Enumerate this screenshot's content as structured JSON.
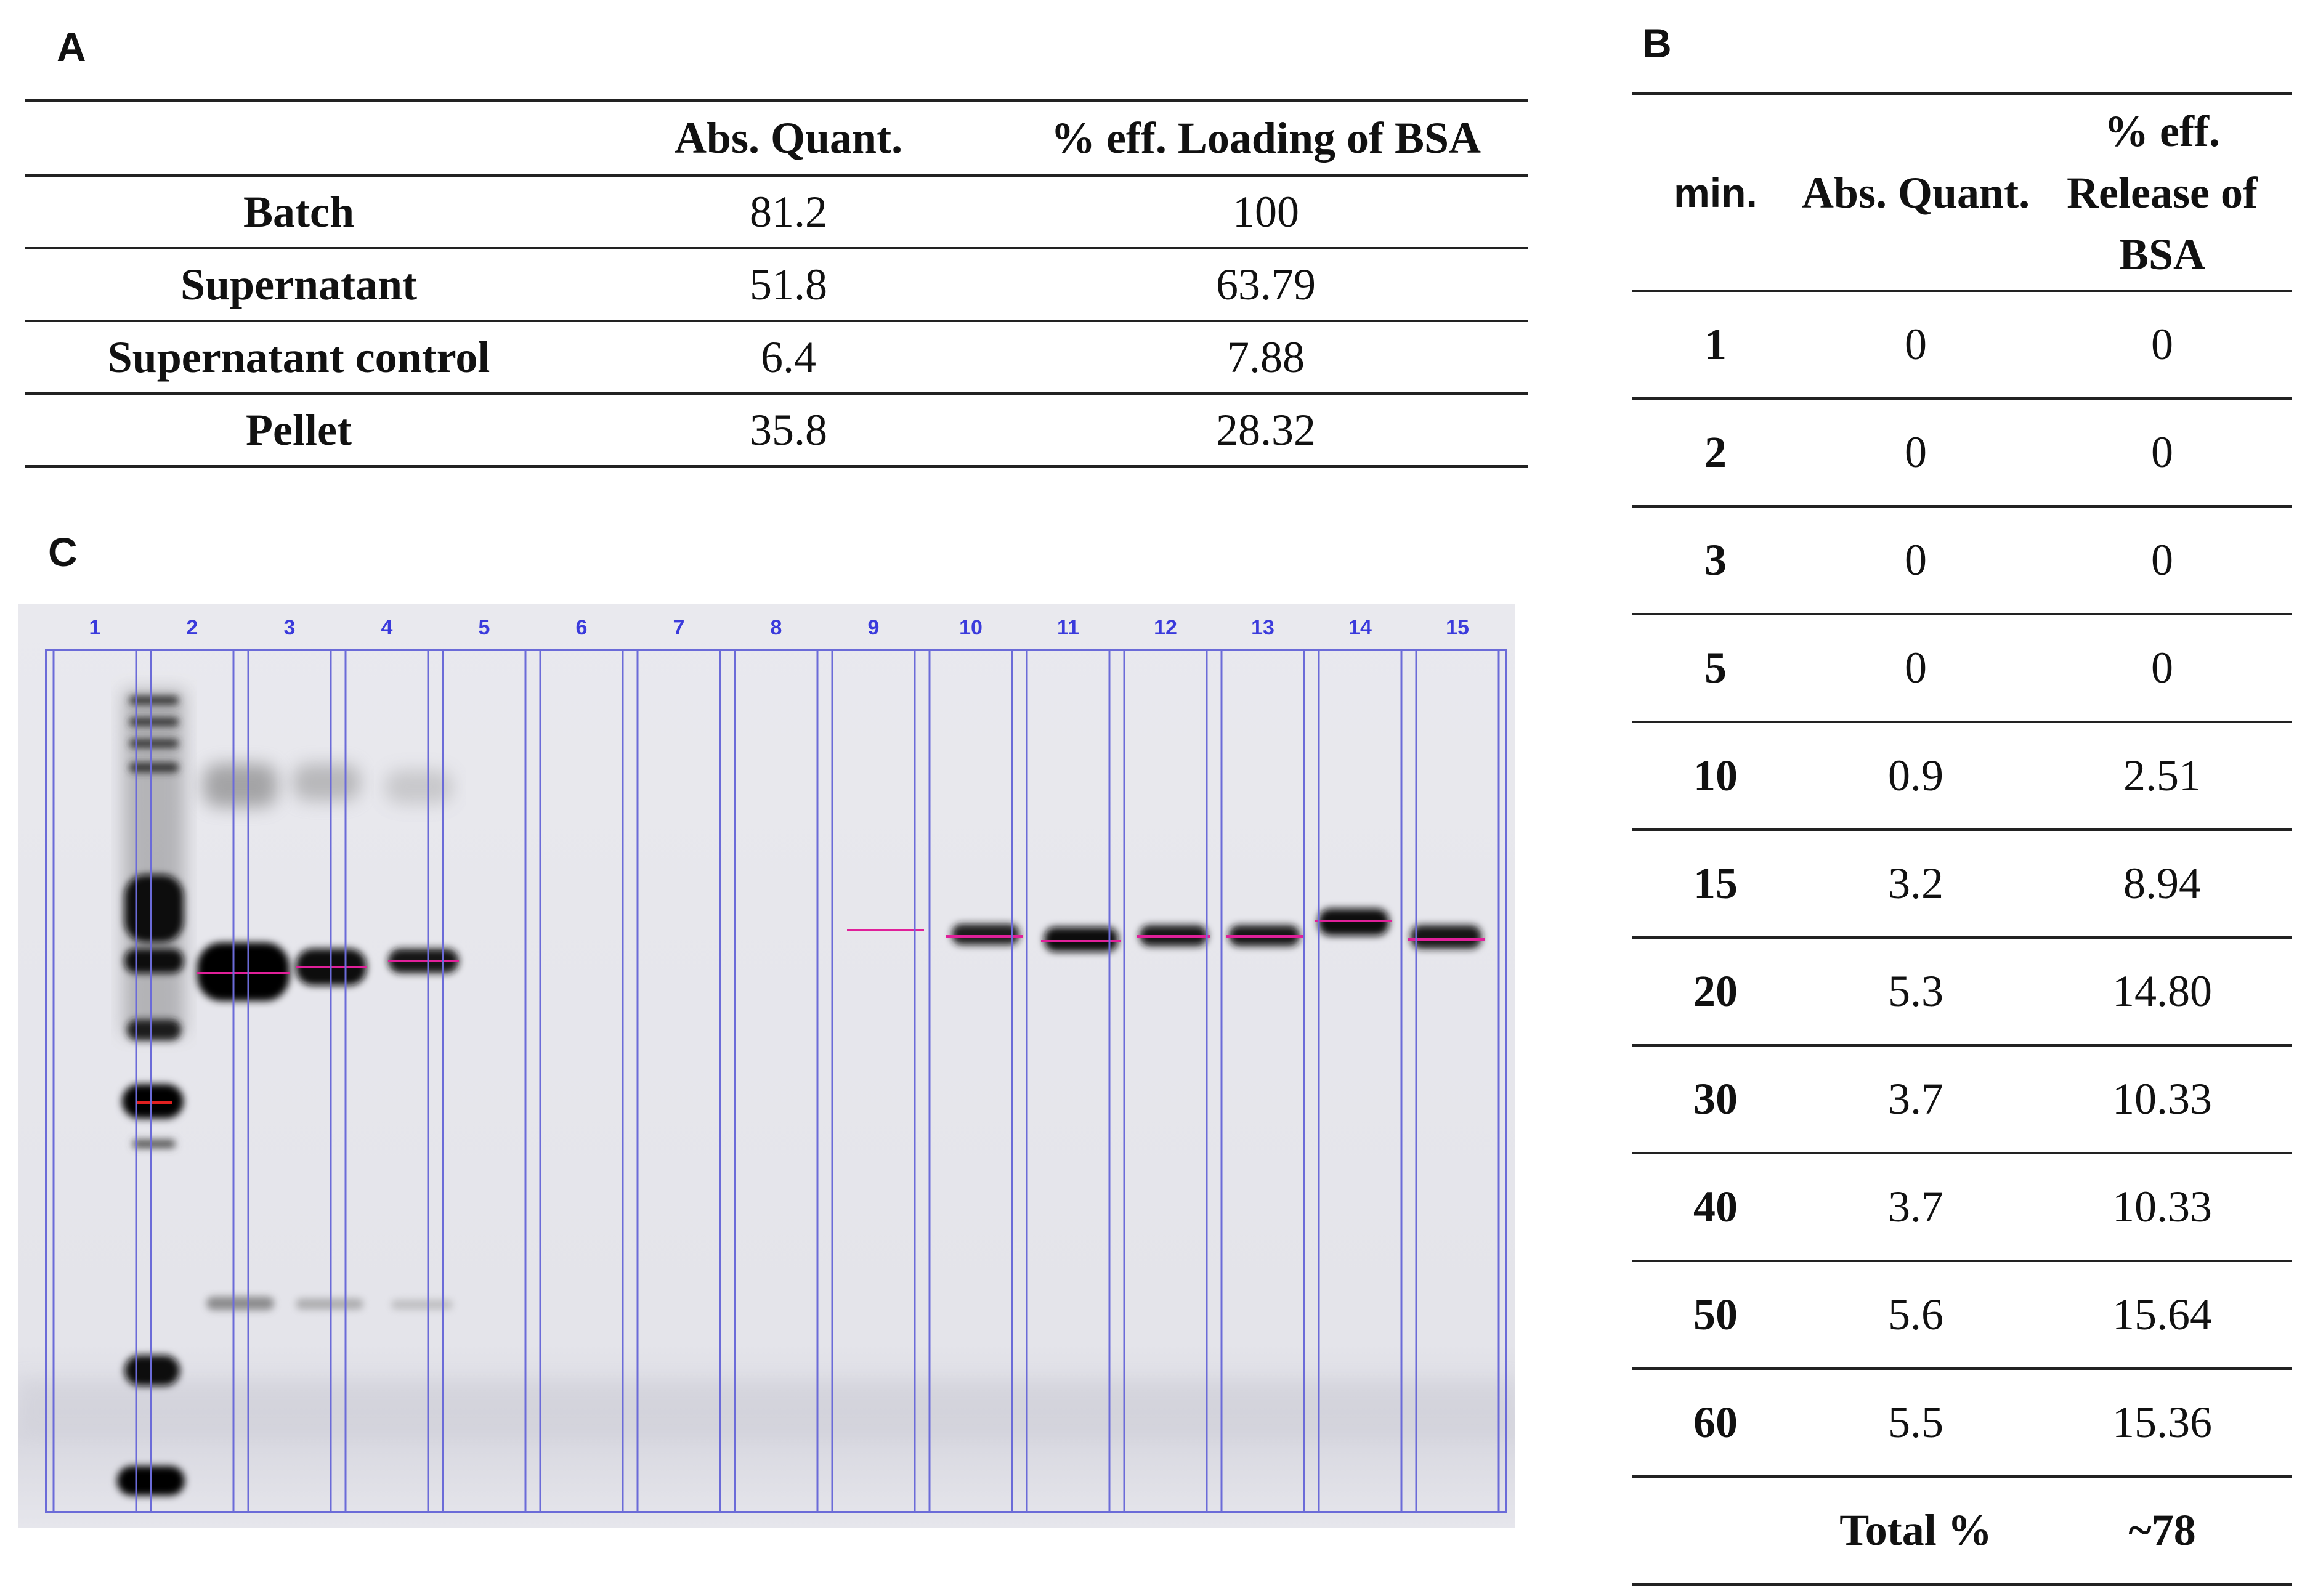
{
  "panels": {
    "a": "A",
    "b": "B",
    "c": "C"
  },
  "table_a": {
    "headers": [
      "",
      "Abs. Quant.",
      "% eff. Loading of BSA"
    ],
    "rows": [
      {
        "label": "Batch",
        "abs": "81.2",
        "eff": "100"
      },
      {
        "label": "Supernatant",
        "abs": "51.8",
        "eff": "63.79"
      },
      {
        "label": "Supernatant control",
        "abs": "6.4",
        "eff": "7.88"
      },
      {
        "label": "Pellet",
        "abs": "35.8",
        "eff": "28.32"
      }
    ]
  },
  "table_b": {
    "headers": {
      "min": "min.",
      "abs": "Abs. Quant.",
      "eff": "% eff. Release of BSA"
    },
    "rows": [
      {
        "min": "1",
        "abs": "0",
        "eff": "0"
      },
      {
        "min": "2",
        "abs": "0",
        "eff": "0"
      },
      {
        "min": "3",
        "abs": "0",
        "eff": "0"
      },
      {
        "min": "5",
        "abs": "0",
        "eff": "0"
      },
      {
        "min": "10",
        "abs": "0.9",
        "eff": "2.51"
      },
      {
        "min": "15",
        "abs": "3.2",
        "eff": "8.94"
      },
      {
        "min": "20",
        "abs": "5.3",
        "eff": "14.80"
      },
      {
        "min": "30",
        "abs": "3.7",
        "eff": "10.33"
      },
      {
        "min": "40",
        "abs": "3.7",
        "eff": "10.33"
      },
      {
        "min": "50",
        "abs": "5.6",
        "eff": "15.64"
      },
      {
        "min": "60",
        "abs": "5.5",
        "eff": "15.36"
      }
    ],
    "total": {
      "label": "Total %",
      "value": "~78"
    }
  },
  "gel": {
    "lane_numbers": [
      "1",
      "2",
      "3",
      "4",
      "5",
      "6",
      "7",
      "8",
      "9",
      "10",
      "11",
      "12",
      "13",
      "14",
      "15"
    ],
    "lane_number_color": "#3a3adc",
    "lane_box_color": "#6b6bd8",
    "marker_color": "#e0209a",
    "ladder_marker_color": "#e02020"
  }
}
